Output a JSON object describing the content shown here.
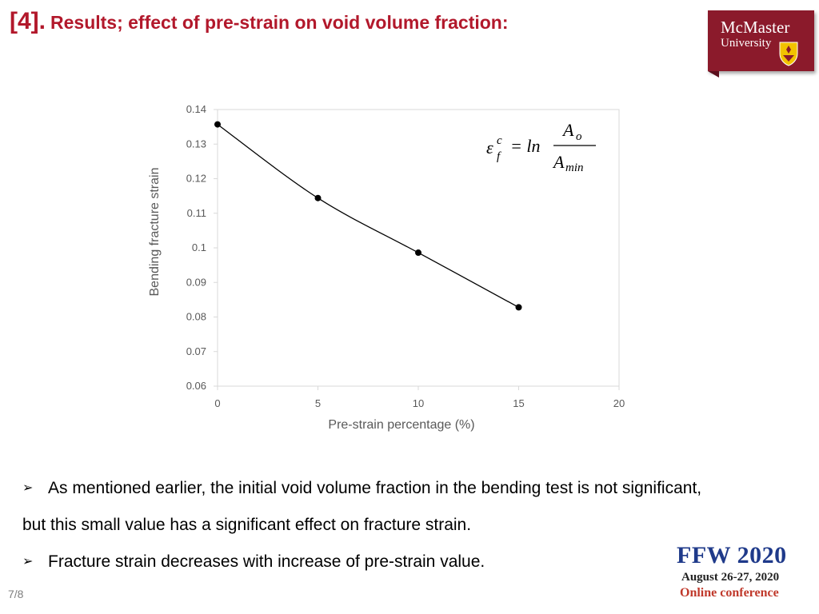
{
  "header": {
    "number": "[4].",
    "title": "Results; effect of pre-strain on void volume fraction:"
  },
  "logo": {
    "line1": "McMaster",
    "line2": "University",
    "color": "#8b1a2b"
  },
  "formula": {
    "lhs_base": "ε",
    "lhs_sup": "c",
    "lhs_sub": "f",
    "op": "= ln",
    "numerator": "A",
    "numerator_sub": "o",
    "denominator": "A",
    "denominator_sub": "min"
  },
  "chart_data": {
    "type": "line",
    "x": [
      0,
      5,
      10,
      15
    ],
    "values": [
      0.1357,
      0.1144,
      0.0986,
      0.0828
    ],
    "xlabel": "Pre-strain percentage (%)",
    "ylabel": "Bending fracture strain",
    "xlim": [
      0,
      20
    ],
    "ylim": [
      0.06,
      0.14
    ],
    "xticks": [
      "0",
      "5",
      "10",
      "15",
      "20"
    ],
    "yticks": [
      "0.06",
      "0.07",
      "0.08",
      "0.09",
      "0.1",
      "0.11",
      "0.12",
      "0.13",
      "0.14"
    ],
    "grid": false,
    "line_color": "#000000",
    "marker": "circle"
  },
  "bullets": [
    {
      "line1": "As mentioned earlier, the initial void volume fraction in the bending test is not significant,",
      "line2": "but this small value has a significant effect on fracture strain."
    },
    {
      "line1": "Fracture strain decreases with increase of pre-strain value."
    }
  ],
  "page_number": "7/8",
  "conference": {
    "name": "FFW 2020",
    "dates": "August 26-27, 2020",
    "mode": "Online conference"
  }
}
